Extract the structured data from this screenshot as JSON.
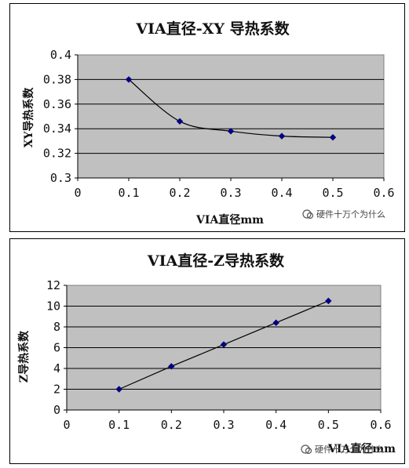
{
  "chart_data": [
    {
      "type": "line",
      "title": "VIA直径-XY 导热系数",
      "xlabel": "VIA直径mm",
      "ylabel": "XY导热系数",
      "x": [
        0.1,
        0.2,
        0.3,
        0.4,
        0.5
      ],
      "series": [
        {
          "values": [
            0.38,
            0.346,
            0.338,
            0.334,
            0.333
          ]
        }
      ],
      "xlim": [
        0,
        0.6
      ],
      "ylim": [
        0.3,
        0.4
      ],
      "xticks": [
        "0",
        "0.1",
        "0.2",
        "0.3",
        "0.4",
        "0.5",
        "0.6"
      ],
      "yticks": [
        "0.3",
        "0.32",
        "0.34",
        "0.36",
        "0.38",
        "0.4"
      ],
      "smooth": true,
      "grid": "horizontal",
      "plot_background": "#c0c0c0",
      "line_color": "#000000",
      "marker_color": "#000080",
      "watermark": "硬件十万个为什么"
    },
    {
      "type": "line",
      "title": "VIA直径-Z导热系数",
      "xlabel": "VIA直径mm",
      "ylabel": "Z导热系数",
      "x": [
        0.1,
        0.2,
        0.3,
        0.4,
        0.5
      ],
      "series": [
        {
          "values": [
            2.0,
            4.2,
            6.3,
            8.4,
            10.5
          ]
        }
      ],
      "xlim": [
        0,
        0.6
      ],
      "ylim": [
        0,
        12
      ],
      "xticks": [
        "0",
        "0.1",
        "0.2",
        "0.3",
        "0.4",
        "0.5",
        "0.6"
      ],
      "yticks": [
        "0",
        "2",
        "4",
        "6",
        "8",
        "10",
        "12"
      ],
      "smooth": false,
      "grid": "horizontal",
      "plot_background": "#c0c0c0",
      "line_color": "#000000",
      "marker_color": "#000080",
      "watermark": "硬件十万个为什么"
    }
  ]
}
